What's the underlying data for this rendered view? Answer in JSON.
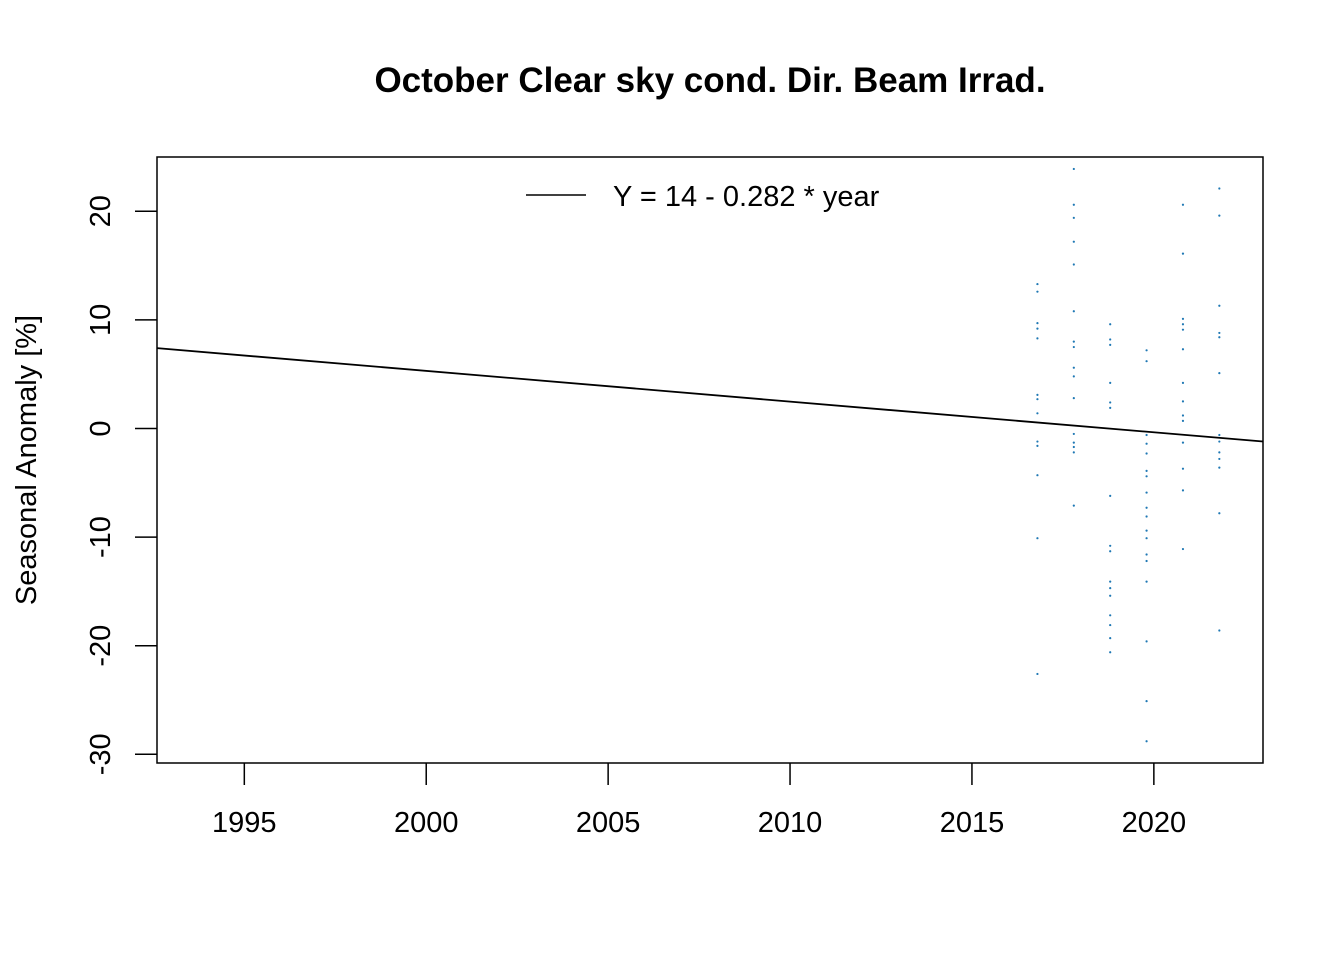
{
  "chart_data": {
    "type": "scatter",
    "title": "October Clear sky cond. Dir. Beam Irrad.",
    "xlabel": "",
    "ylabel": "Seasonal Anomaly [%]",
    "xlim": [
      1992.6,
      2023.0
    ],
    "ylim": [
      -30.8,
      25
    ],
    "x_ticks": [
      1995,
      2000,
      2005,
      2010,
      2015,
      2020
    ],
    "y_ticks": [
      -30,
      -20,
      -10,
      0,
      10,
      20
    ],
    "grid": false,
    "legend_position": "top-center",
    "point_color": "#1f78b4",
    "line_color": "#000000",
    "trend_line": {
      "label": "Y = 14 - 0.282 * year",
      "intercept_at_1992_6": 7.4,
      "start": [
        1992.6,
        7.4
      ],
      "end": [
        2023.0,
        -1.2
      ]
    },
    "points": [
      {
        "x": 2016.8,
        "y": 13.3
      },
      {
        "x": 2016.8,
        "y": 12.6
      },
      {
        "x": 2016.8,
        "y": 9.7
      },
      {
        "x": 2016.8,
        "y": 9.2
      },
      {
        "x": 2016.8,
        "y": 8.3
      },
      {
        "x": 2016.8,
        "y": 3.1
      },
      {
        "x": 2016.8,
        "y": 2.7
      },
      {
        "x": 2016.8,
        "y": 1.4
      },
      {
        "x": 2016.8,
        "y": -1.2
      },
      {
        "x": 2016.8,
        "y": -1.6
      },
      {
        "x": 2016.8,
        "y": -4.3
      },
      {
        "x": 2016.8,
        "y": -10.1
      },
      {
        "x": 2016.8,
        "y": -22.6
      },
      {
        "x": 2017.8,
        "y": 23.9
      },
      {
        "x": 2017.8,
        "y": 20.6
      },
      {
        "x": 2017.8,
        "y": 19.4
      },
      {
        "x": 2017.8,
        "y": 17.2
      },
      {
        "x": 2017.8,
        "y": 15.1
      },
      {
        "x": 2017.8,
        "y": 10.8
      },
      {
        "x": 2017.8,
        "y": 8.0
      },
      {
        "x": 2017.8,
        "y": 7.5
      },
      {
        "x": 2017.8,
        "y": 5.6
      },
      {
        "x": 2017.8,
        "y": 4.8
      },
      {
        "x": 2017.8,
        "y": 2.8
      },
      {
        "x": 2017.8,
        "y": -0.5
      },
      {
        "x": 2017.8,
        "y": -1.3
      },
      {
        "x": 2017.8,
        "y": -1.7
      },
      {
        "x": 2017.8,
        "y": -2.2
      },
      {
        "x": 2017.8,
        "y": -7.1
      },
      {
        "x": 2018.8,
        "y": 9.6
      },
      {
        "x": 2018.8,
        "y": 8.2
      },
      {
        "x": 2018.8,
        "y": 7.7
      },
      {
        "x": 2018.8,
        "y": 4.2
      },
      {
        "x": 2018.8,
        "y": 2.4
      },
      {
        "x": 2018.8,
        "y": 1.9
      },
      {
        "x": 2018.8,
        "y": -6.2
      },
      {
        "x": 2018.8,
        "y": -10.8
      },
      {
        "x": 2018.8,
        "y": -11.3
      },
      {
        "x": 2018.8,
        "y": -14.1
      },
      {
        "x": 2018.8,
        "y": -14.7
      },
      {
        "x": 2018.8,
        "y": -15.4
      },
      {
        "x": 2018.8,
        "y": -17.2
      },
      {
        "x": 2018.8,
        "y": -18.1
      },
      {
        "x": 2018.8,
        "y": -19.3
      },
      {
        "x": 2018.8,
        "y": -20.6
      },
      {
        "x": 2019.8,
        "y": 7.2
      },
      {
        "x": 2019.8,
        "y": 6.2
      },
      {
        "x": 2019.8,
        "y": -0.6
      },
      {
        "x": 2019.8,
        "y": -1.4
      },
      {
        "x": 2019.8,
        "y": -2.3
      },
      {
        "x": 2019.8,
        "y": -3.9
      },
      {
        "x": 2019.8,
        "y": -4.4
      },
      {
        "x": 2019.8,
        "y": -5.9
      },
      {
        "x": 2019.8,
        "y": -7.3
      },
      {
        "x": 2019.8,
        "y": -8.1
      },
      {
        "x": 2019.8,
        "y": -9.4
      },
      {
        "x": 2019.8,
        "y": -10.1
      },
      {
        "x": 2019.8,
        "y": -11.6
      },
      {
        "x": 2019.8,
        "y": -12.2
      },
      {
        "x": 2019.8,
        "y": -14.1
      },
      {
        "x": 2019.8,
        "y": -19.6
      },
      {
        "x": 2019.8,
        "y": -25.1
      },
      {
        "x": 2019.8,
        "y": -28.8
      },
      {
        "x": 2020.8,
        "y": 20.6
      },
      {
        "x": 2020.8,
        "y": 16.1
      },
      {
        "x": 2020.8,
        "y": 10.1
      },
      {
        "x": 2020.8,
        "y": 9.6
      },
      {
        "x": 2020.8,
        "y": 9.1
      },
      {
        "x": 2020.8,
        "y": 7.3
      },
      {
        "x": 2020.8,
        "y": 4.2
      },
      {
        "x": 2020.8,
        "y": 2.5
      },
      {
        "x": 2020.8,
        "y": 1.2
      },
      {
        "x": 2020.8,
        "y": 0.7
      },
      {
        "x": 2020.8,
        "y": -1.3
      },
      {
        "x": 2020.8,
        "y": -3.7
      },
      {
        "x": 2020.8,
        "y": -5.7
      },
      {
        "x": 2020.8,
        "y": -11.1
      },
      {
        "x": 2021.8,
        "y": 22.1
      },
      {
        "x": 2021.8,
        "y": 19.6
      },
      {
        "x": 2021.8,
        "y": 11.3
      },
      {
        "x": 2021.8,
        "y": 8.8
      },
      {
        "x": 2021.8,
        "y": 8.4
      },
      {
        "x": 2021.8,
        "y": 5.1
      },
      {
        "x": 2021.8,
        "y": -0.6
      },
      {
        "x": 2021.8,
        "y": -1.2
      },
      {
        "x": 2021.8,
        "y": -2.2
      },
      {
        "x": 2021.8,
        "y": -2.8
      },
      {
        "x": 2021.8,
        "y": -3.6
      },
      {
        "x": 2021.8,
        "y": -7.8
      },
      {
        "x": 2021.8,
        "y": -18.6
      }
    ]
  }
}
